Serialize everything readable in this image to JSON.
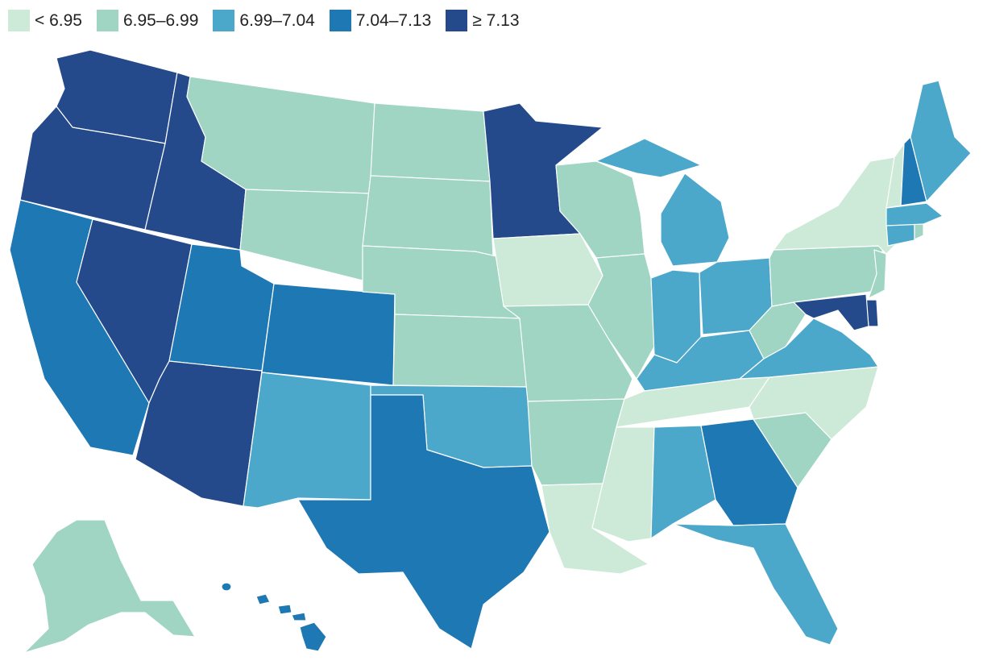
{
  "legend": [
    {
      "label": "< 6.95",
      "color": "#cde9d7"
    },
    {
      "label": "6.95–6.99",
      "color": "#9fd5c2"
    },
    {
      "label": "6.99–7.04",
      "color": "#4ba8cb"
    },
    {
      "label": "7.04–7.13",
      "color": "#1e78b4"
    },
    {
      "label": "≥ 7.13",
      "color": "#244a8c"
    }
  ],
  "states": {
    "WA": 4,
    "OR": 4,
    "ID": 4,
    "NV": 4,
    "AZ": 4,
    "MN": 4,
    "MD": 4,
    "DE": 4,
    "CA": 3,
    "UT": 3,
    "CO": 3,
    "TX": 3,
    "GA": 3,
    "NH": 3,
    "HI": 3,
    "NM": 2,
    "OK": 2,
    "MI": 2,
    "IN": 2,
    "OH": 2,
    "KY": 2,
    "VA": 2,
    "AL": 2,
    "FL": 2,
    "ME": 2,
    "MA": 2,
    "CT": 2,
    "MT": 1,
    "ND": 1,
    "SD": 1,
    "WY": 1,
    "NE": 1,
    "KS": 1,
    "MO": 1,
    "AR": 1,
    "WI": 1,
    "IL": 1,
    "PA": 1,
    "NJ": 1,
    "WV": 1,
    "SC": 1,
    "AK": 1,
    "RI": 1,
    "IA": 0,
    "NY": 0,
    "VT": 0,
    "NC": 0,
    "TN": 0,
    "MS": 0,
    "LA": 0
  }
}
